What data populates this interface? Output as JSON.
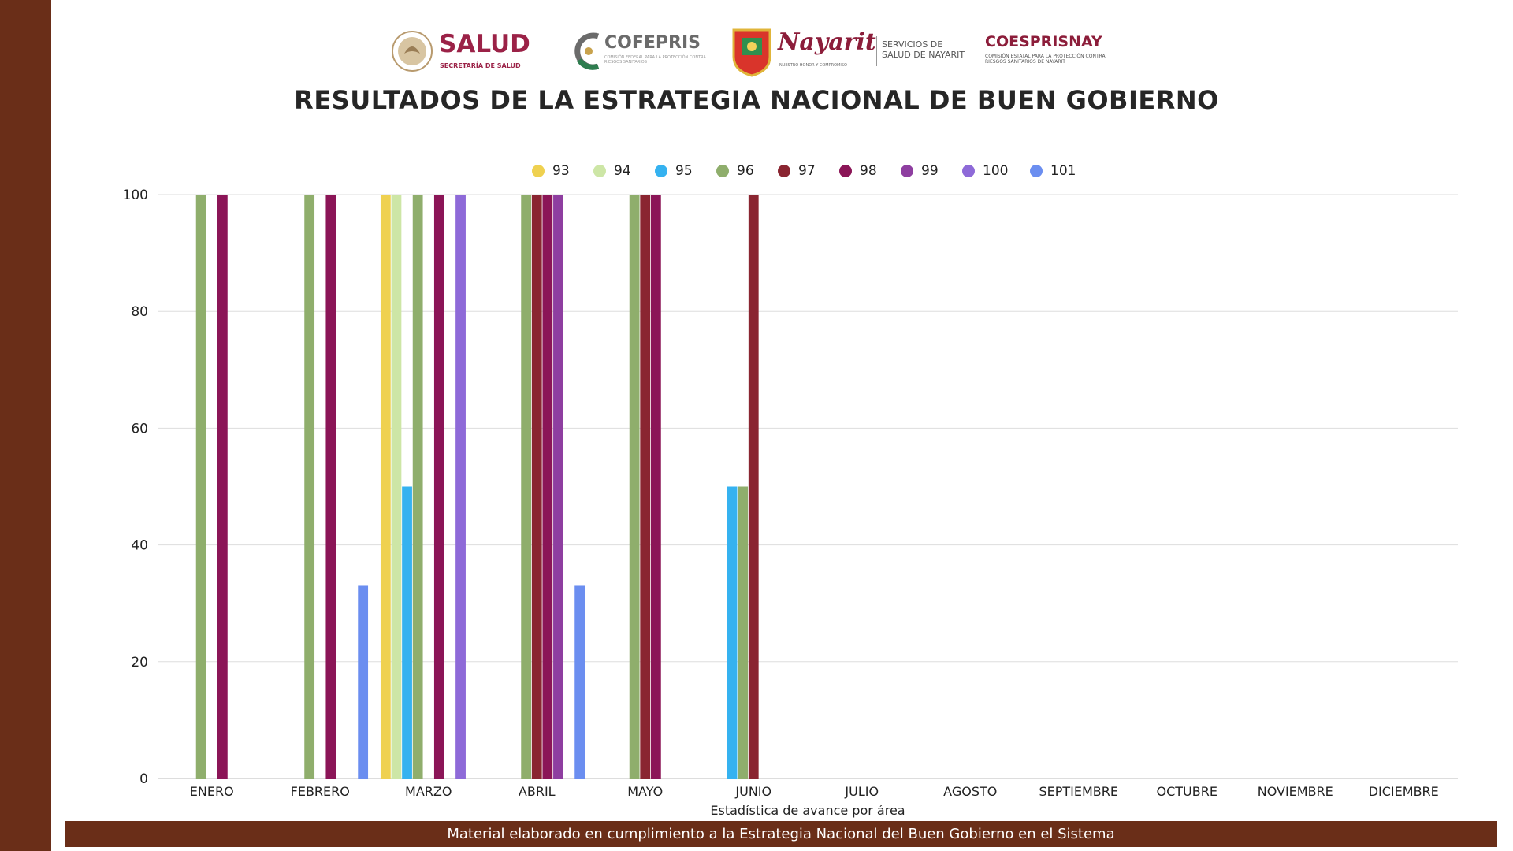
{
  "logos": {
    "salud": {
      "name": "SALUD",
      "sub": "SECRETARÍA DE SALUD"
    },
    "cofepris": {
      "name": "COFEPRIS",
      "sub": "COMISIÓN FEDERAL PARA LA PROTECCIÓN CONTRA RIESGOS SANITARIOS"
    },
    "nayarit": {
      "name": "Nayarit",
      "sub": "NUESTRO HONOR Y COMPROMISO",
      "services": "SERVICIOS DE SALUD DE NAYARIT"
    },
    "coesprisnay": {
      "name": "COESPRISNAY",
      "sub": "COMISIÓN ESTATAL PARA LA PROTECCIÓN CONTRA RIESGOS SANITARIOS DE NAYARIT"
    }
  },
  "title": "RESULTADOS DE LA ESTRATEGIA NACIONAL DE BUEN GOBIERNO",
  "footer": "Material elaborado en cumplimiento a la Estrategia Nacional  del Buen Gobierno en el Sistema",
  "colors": {
    "brand": "#6a2e18",
    "grid": "#dddddd"
  },
  "chart_data": {
    "type": "bar",
    "xlabel": "Estadística de avance por área",
    "ylabel": "",
    "ylim": [
      0,
      100
    ],
    "yticks": [
      0,
      20,
      40,
      60,
      80,
      100
    ],
    "grid": true,
    "legend_position": "top",
    "categories": [
      "ENERO",
      "FEBRERO",
      "MARZO",
      "ABRIL",
      "MAYO",
      "JUNIO",
      "JULIO",
      "AGOSTO",
      "SEPTIEMBRE",
      "OCTUBRE",
      "NOVIEMBRE",
      "DICIEMBRE"
    ],
    "series": [
      {
        "name": "93",
        "color": "#efd150",
        "values": [
          null,
          null,
          100,
          null,
          null,
          null,
          null,
          null,
          null,
          null,
          null,
          null
        ]
      },
      {
        "name": "94",
        "color": "#cde6a6",
        "values": [
          null,
          null,
          100,
          null,
          null,
          null,
          null,
          null,
          null,
          null,
          null,
          null
        ]
      },
      {
        "name": "95",
        "color": "#35b2f0",
        "values": [
          null,
          null,
          50,
          null,
          null,
          50,
          null,
          null,
          null,
          null,
          null,
          null
        ]
      },
      {
        "name": "96",
        "color": "#8fae6c",
        "values": [
          100,
          100,
          100,
          100,
          100,
          50,
          null,
          null,
          null,
          null,
          null,
          null
        ]
      },
      {
        "name": "97",
        "color": "#8a2531",
        "values": [
          null,
          null,
          null,
          100,
          100,
          100,
          null,
          null,
          null,
          null,
          null,
          null
        ]
      },
      {
        "name": "98",
        "color": "#8b1557",
        "values": [
          100,
          100,
          100,
          100,
          100,
          null,
          null,
          null,
          null,
          null,
          null,
          null
        ]
      },
      {
        "name": "99",
        "color": "#8e3ea0",
        "values": [
          null,
          null,
          null,
          100,
          null,
          null,
          null,
          null,
          null,
          null,
          null,
          null
        ]
      },
      {
        "name": "100",
        "color": "#8e6ad8",
        "values": [
          null,
          null,
          100,
          null,
          null,
          null,
          null,
          null,
          null,
          null,
          null,
          null
        ]
      },
      {
        "name": "101",
        "color": "#6b8ef0",
        "values": [
          null,
          33,
          null,
          33,
          null,
          null,
          null,
          null,
          null,
          null,
          null,
          null
        ]
      }
    ]
  }
}
